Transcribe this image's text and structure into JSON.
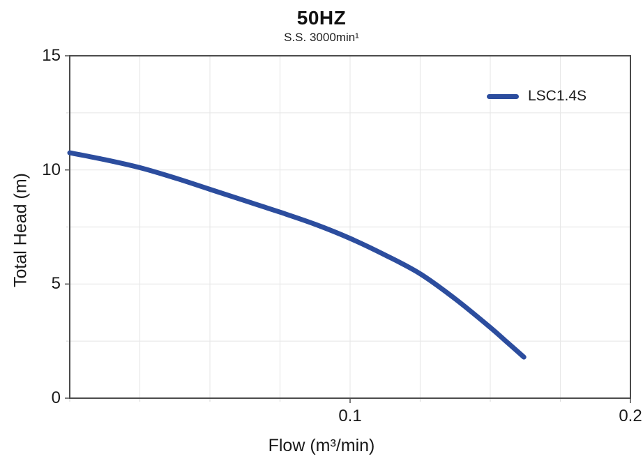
{
  "title": "50HZ",
  "subtitle": "S.S. 3000min¹",
  "legend": {
    "label": "LSC1.4S",
    "marker_color": "#2c4d9e"
  },
  "axes": {
    "x": {
      "label": "Flow (m³/min)"
    },
    "y": {
      "label": "Total Head (m)"
    }
  },
  "colors": {
    "curve": "#2c4d9e",
    "text": "#1a1a1a",
    "gridline": "#e8e8e8",
    "plot_border": "#4b4b4b",
    "tick_major": "#5a5a5a",
    "tick_minor": "#dcdcdc"
  },
  "chart_data": {
    "type": "line",
    "title": "50HZ",
    "subtitle": "S.S. 3000min¹",
    "xlabel": "Flow (m³/min)",
    "ylabel": "Total Head (m)",
    "xlim": [
      0,
      0.2
    ],
    "ylim": [
      0,
      15
    ],
    "x_gridline_step": 0.025,
    "y_gridline_step": 2.5,
    "grid": true,
    "legend_position": "top-right",
    "x_ticks": [
      {
        "value": 0.1,
        "label": "0.1"
      },
      {
        "value": 0.2,
        "label": "0.2"
      }
    ],
    "y_ticks": [
      {
        "value": 15,
        "label": "15"
      },
      {
        "value": 10,
        "label": "10"
      },
      {
        "value": 5,
        "label": "5"
      },
      {
        "value": 0,
        "label": "0"
      }
    ],
    "series": [
      {
        "name": "LSC1.4S",
        "color": "#2c4d9e",
        "line_width": 7,
        "points": [
          [
            0,
            10.75
          ],
          [
            0.0125,
            10.45
          ],
          [
            0.025,
            10.1
          ],
          [
            0.0375,
            9.65
          ],
          [
            0.05,
            9.15
          ],
          [
            0.0625,
            8.65
          ],
          [
            0.075,
            8.15
          ],
          [
            0.0875,
            7.62
          ],
          [
            0.1,
            7.0
          ],
          [
            0.1125,
            6.27
          ],
          [
            0.125,
            5.45
          ],
          [
            0.1375,
            4.35
          ],
          [
            0.15,
            3.1
          ],
          [
            0.156,
            2.45
          ],
          [
            0.162,
            1.8
          ]
        ]
      }
    ]
  }
}
